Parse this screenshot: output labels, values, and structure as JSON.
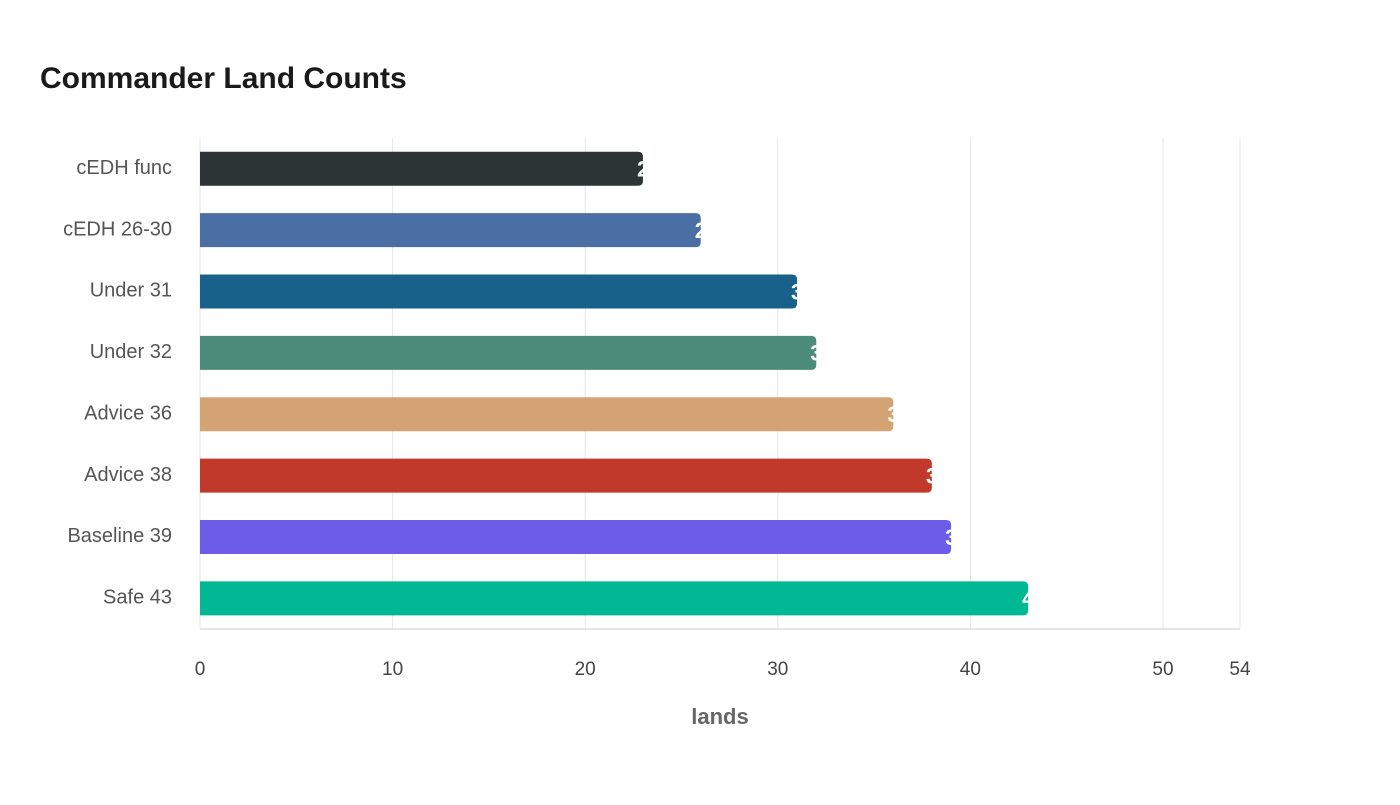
{
  "chart_data": {
    "type": "hbar",
    "title": "Commander Land Counts",
    "x_label": "lands",
    "categories": [
      "cEDH func",
      "cEDH 26-30",
      "Under 31",
      "Under 32",
      "Advice 36",
      "Advice 38",
      "Baseline 39",
      "Safe 43"
    ],
    "values": [
      23,
      26,
      31,
      32,
      36,
      38,
      39,
      43
    ],
    "colors": [
      "#2d3436",
      "#4a6fa5",
      "#18618a",
      "#4e8c7a",
      "#d4a373",
      "#c0392b",
      "#6c5ce7",
      "#00b894"
    ],
    "xlim": [
      0,
      54
    ],
    "xticks": [
      0,
      10,
      20,
      30,
      40,
      50,
      54
    ],
    "grid": true
  }
}
